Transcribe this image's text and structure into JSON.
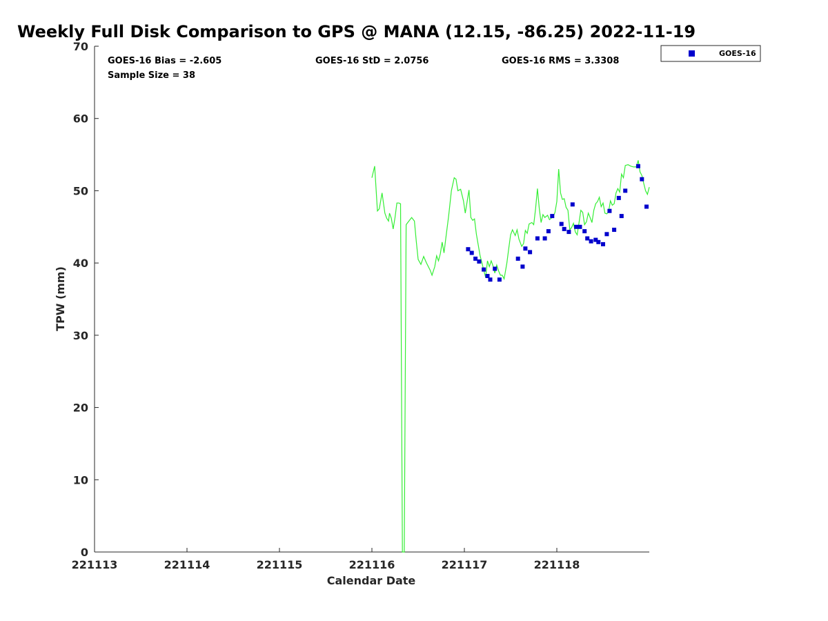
{
  "chart_data": {
    "type": "scatter",
    "title": "Weekly Full Disk Comparison to GPS @ MANA (12.15, -86.25) 2022-11-19",
    "xlabel": "Calendar Date",
    "ylabel": "TPW (mm)",
    "xlim": [
      221113,
      221119
    ],
    "ylim": [
      0,
      70
    ],
    "x_ticks": [
      "221113",
      "221114",
      "221115",
      "221116",
      "221117",
      "221118"
    ],
    "y_ticks": [
      "0",
      "10",
      "20",
      "30",
      "40",
      "50",
      "60",
      "70"
    ],
    "grid": false,
    "legend_position": "top-right",
    "stats": {
      "bias": "GOES-16 Bias = -2.605",
      "std": "GOES-16 StD = 2.0756",
      "rms": "GOES-16 RMS = 3.3308",
      "sample": "Sample Size = 38"
    },
    "series": [
      {
        "name": "GOES-16",
        "kind": "scatter",
        "color": "#0000cc",
        "points": [
          [
            221117.04,
            41.9
          ],
          [
            221117.08,
            41.4
          ],
          [
            221117.12,
            40.6
          ],
          [
            221117.16,
            40.2
          ],
          [
            221117.21,
            39.1
          ],
          [
            221117.25,
            38.2
          ],
          [
            221117.28,
            37.7
          ],
          [
            221117.33,
            39.2
          ],
          [
            221117.38,
            37.7
          ],
          [
            221117.58,
            40.6
          ],
          [
            221117.63,
            39.5
          ],
          [
            221117.66,
            42.0
          ],
          [
            221117.71,
            41.5
          ],
          [
            221117.79,
            43.4
          ],
          [
            221117.87,
            43.4
          ],
          [
            221117.91,
            44.4
          ],
          [
            221117.95,
            46.5
          ],
          [
            221118.05,
            45.4
          ],
          [
            221118.08,
            44.7
          ],
          [
            221118.13,
            44.3
          ],
          [
            221118.17,
            48.1
          ],
          [
            221118.21,
            45.0
          ],
          [
            221118.25,
            45.0
          ],
          [
            221118.3,
            44.4
          ],
          [
            221118.33,
            43.4
          ],
          [
            221118.37,
            43.0
          ],
          [
            221118.42,
            43.2
          ],
          [
            221118.45,
            42.9
          ],
          [
            221118.5,
            42.6
          ],
          [
            221118.54,
            44.0
          ],
          [
            221118.57,
            47.2
          ],
          [
            221118.62,
            44.6
          ],
          [
            221118.67,
            49.0
          ],
          [
            221118.7,
            46.5
          ],
          [
            221118.74,
            50.0
          ],
          [
            221118.88,
            53.4
          ],
          [
            221118.92,
            51.6
          ],
          [
            221118.97,
            47.8
          ]
        ]
      },
      {
        "kind": "line",
        "color": "#33ee33",
        "points": [
          [
            221116.0,
            51.8
          ],
          [
            221116.03,
            53.4
          ],
          [
            221116.06,
            47.2
          ],
          [
            221116.08,
            47.5
          ],
          [
            221116.11,
            49.7
          ],
          [
            221116.14,
            46.9
          ],
          [
            221116.16,
            46.2
          ],
          [
            221116.18,
            45.8
          ],
          [
            221116.19,
            46.9
          ],
          [
            221116.21,
            46.2
          ],
          [
            221116.23,
            44.7
          ],
          [
            221116.25,
            46.3
          ],
          [
            221116.27,
            48.3
          ],
          [
            221116.29,
            48.3
          ],
          [
            221116.31,
            48.2
          ],
          [
            221116.33,
            0.0
          ],
          [
            221116.35,
            0.0
          ],
          [
            221116.37,
            45.3
          ],
          [
            221116.4,
            45.8
          ],
          [
            221116.43,
            46.3
          ],
          [
            221116.46,
            45.8
          ],
          [
            221116.48,
            43.0
          ],
          [
            221116.5,
            40.5
          ],
          [
            221116.53,
            39.8
          ],
          [
            221116.56,
            40.9
          ],
          [
            221116.59,
            40.0
          ],
          [
            221116.63,
            39.0
          ],
          [
            221116.65,
            38.3
          ],
          [
            221116.68,
            39.5
          ],
          [
            221116.7,
            41.0
          ],
          [
            221116.72,
            40.3
          ],
          [
            221116.74,
            41.3
          ],
          [
            221116.76,
            42.9
          ],
          [
            221116.78,
            41.4
          ],
          [
            221116.8,
            43.5
          ],
          [
            221116.83,
            46.5
          ],
          [
            221116.86,
            50.0
          ],
          [
            221116.89,
            51.8
          ],
          [
            221116.91,
            51.6
          ],
          [
            221116.93,
            50.0
          ],
          [
            221116.96,
            50.2
          ],
          [
            221116.99,
            48.6
          ],
          [
            221117.01,
            46.9
          ],
          [
            221117.03,
            48.5
          ],
          [
            221117.05,
            50.1
          ],
          [
            221117.07,
            46.3
          ],
          [
            221117.09,
            45.9
          ],
          [
            221117.11,
            46.1
          ],
          [
            221117.13,
            44.0
          ],
          [
            221117.15,
            42.5
          ],
          [
            221117.17,
            41.0
          ],
          [
            221117.19,
            40.0
          ],
          [
            221117.21,
            39.0
          ],
          [
            221117.23,
            38.0
          ],
          [
            221117.25,
            40.3
          ],
          [
            221117.27,
            39.5
          ],
          [
            221117.29,
            40.3
          ],
          [
            221117.31,
            39.6
          ],
          [
            221117.33,
            38.6
          ],
          [
            221117.35,
            39.7
          ],
          [
            221117.37,
            38.9
          ],
          [
            221117.39,
            38.3
          ],
          [
            221117.41,
            38.3
          ],
          [
            221117.43,
            37.8
          ],
          [
            221117.46,
            40.0
          ],
          [
            221117.48,
            42.0
          ],
          [
            221117.5,
            43.9
          ],
          [
            221117.52,
            44.6
          ],
          [
            221117.55,
            43.8
          ],
          [
            221117.57,
            44.6
          ],
          [
            221117.59,
            43.3
          ],
          [
            221117.62,
            42.3
          ],
          [
            221117.64,
            42.7
          ],
          [
            221117.66,
            44.5
          ],
          [
            221117.68,
            44.1
          ],
          [
            221117.7,
            45.4
          ],
          [
            221117.73,
            45.6
          ],
          [
            221117.75,
            45.3
          ],
          [
            221117.77,
            47.5
          ],
          [
            221117.79,
            50.3
          ],
          [
            221117.81,
            47.6
          ],
          [
            221117.83,
            45.6
          ],
          [
            221117.85,
            46.7
          ],
          [
            221117.87,
            46.3
          ],
          [
            221117.9,
            46.6
          ],
          [
            221117.92,
            46.0
          ],
          [
            221117.94,
            46.2
          ],
          [
            221117.96,
            46.4
          ],
          [
            221117.98,
            47.0
          ],
          [
            221118.0,
            48.5
          ],
          [
            221118.02,
            53.0
          ],
          [
            221118.04,
            49.7
          ],
          [
            221118.06,
            48.8
          ],
          [
            221118.08,
            48.9
          ],
          [
            221118.1,
            47.7
          ],
          [
            221118.12,
            47.3
          ],
          [
            221118.14,
            44.6
          ],
          [
            221118.16,
            44.9
          ],
          [
            221118.18,
            45.5
          ],
          [
            221118.2,
            44.3
          ],
          [
            221118.22,
            43.9
          ],
          [
            221118.24,
            45.6
          ],
          [
            221118.26,
            47.3
          ],
          [
            221118.28,
            47.0
          ],
          [
            221118.3,
            45.3
          ],
          [
            221118.32,
            45.7
          ],
          [
            221118.34,
            46.9
          ],
          [
            221118.36,
            46.3
          ],
          [
            221118.38,
            45.6
          ],
          [
            221118.4,
            47.3
          ],
          [
            221118.42,
            48.2
          ],
          [
            221118.44,
            48.5
          ],
          [
            221118.46,
            49.1
          ],
          [
            221118.48,
            47.8
          ],
          [
            221118.5,
            48.3
          ],
          [
            221118.52,
            46.9
          ],
          [
            221118.54,
            46.8
          ],
          [
            221118.56,
            47.1
          ],
          [
            221118.58,
            48.6
          ],
          [
            221118.6,
            48.0
          ],
          [
            221118.62,
            48.2
          ],
          [
            221118.64,
            49.7
          ],
          [
            221118.66,
            50.3
          ],
          [
            221118.68,
            49.8
          ],
          [
            221118.7,
            52.3
          ],
          [
            221118.72,
            51.8
          ],
          [
            221118.74,
            53.5
          ],
          [
            221118.77,
            53.6
          ],
          [
            221118.8,
            53.4
          ],
          [
            221118.83,
            53.3
          ],
          [
            221118.86,
            53.3
          ],
          [
            221118.88,
            54.2
          ],
          [
            221118.9,
            52.6
          ],
          [
            221118.92,
            52.1
          ],
          [
            221118.94,
            51.0
          ],
          [
            221118.96,
            50.0
          ],
          [
            221118.98,
            49.5
          ],
          [
            221119.0,
            50.5
          ]
        ]
      }
    ]
  }
}
